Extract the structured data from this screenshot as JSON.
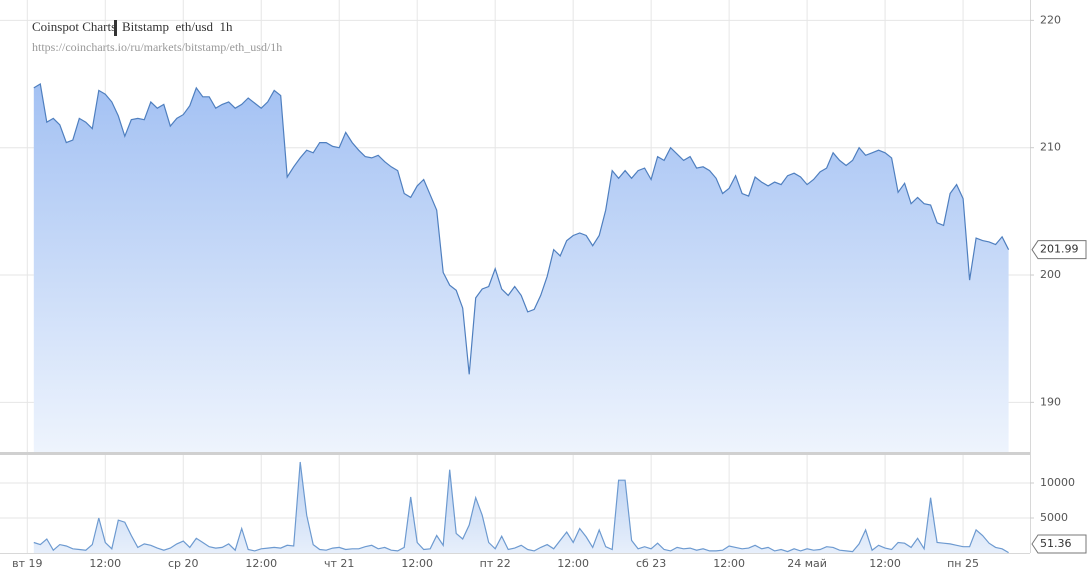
{
  "chart_data": [
    {
      "type": "area",
      "title": "Coinspot Charts",
      "subtitle": "Bitstamp  eth/usd  1h",
      "source": "https://coincharts.io/ru/markets/bitstamp/eth_usd/1h",
      "color": "#4f7fbf",
      "x": [
        1,
        2,
        3,
        4,
        5,
        6,
        7,
        8,
        9,
        10,
        11,
        12,
        13,
        14,
        15,
        16,
        17,
        18,
        19,
        20,
        21,
        22,
        23,
        24,
        25,
        26,
        27,
        28,
        29,
        30,
        31,
        32,
        33,
        34,
        35,
        36,
        37,
        38,
        39,
        40,
        41,
        42,
        43,
        44,
        45,
        46,
        47,
        48,
        49,
        50,
        51,
        52,
        53,
        54,
        55,
        56,
        57,
        58,
        59,
        60,
        61,
        62,
        63,
        64,
        65,
        66,
        67,
        68,
        69,
        70,
        71,
        72,
        73,
        74,
        75,
        76,
        77,
        78,
        79,
        80,
        81,
        82,
        83,
        84,
        85,
        86,
        87,
        88,
        89,
        90,
        91,
        92,
        93,
        94,
        95,
        96,
        97,
        98,
        99,
        100,
        101,
        102,
        103,
        104,
        105,
        106,
        107,
        108,
        109,
        110,
        111,
        112,
        113,
        114,
        115,
        116,
        117,
        118,
        119,
        120,
        121,
        122,
        123,
        124,
        125,
        126,
        127,
        128,
        129,
        130,
        131,
        132,
        133,
        134,
        135,
        136,
        137,
        138,
        139,
        140,
        141,
        142,
        143,
        144,
        145,
        146,
        147,
        148,
        149,
        150,
        151
      ],
      "values": [
        214.7,
        215.0,
        212.0,
        212.3,
        211.8,
        210.4,
        210.6,
        212.3,
        212.0,
        211.5,
        214.5,
        214.2,
        213.6,
        212.5,
        210.9,
        212.2,
        212.3,
        212.2,
        213.6,
        213.1,
        213.4,
        211.7,
        212.3,
        212.6,
        213.3,
        214.7,
        214.0,
        214.0,
        213.1,
        213.4,
        213.6,
        213.1,
        213.4,
        213.9,
        213.5,
        213.1,
        213.6,
        214.5,
        214.1,
        207.7,
        208.5,
        209.2,
        209.8,
        209.6,
        210.4,
        210.4,
        210.1,
        210.0,
        211.2,
        210.4,
        209.8,
        209.3,
        209.2,
        209.4,
        208.9,
        208.5,
        208.2,
        206.4,
        206.1,
        207.0,
        207.5,
        206.3,
        205.1,
        200.2,
        199.2,
        198.8,
        197.4,
        192.2,
        198.2,
        198.9,
        199.1,
        200.5,
        198.9,
        198.4,
        199.1,
        198.4,
        197.1,
        197.3,
        198.4,
        199.9,
        202.0,
        201.5,
        202.7,
        203.1,
        203.3,
        203.1,
        202.3,
        203.1,
        205.1,
        208.2,
        207.6,
        208.2,
        207.6,
        208.2,
        208.4,
        207.5,
        209.3,
        209.0,
        210.0,
        209.5,
        209.0,
        209.3,
        208.4,
        208.5,
        208.2,
        207.6,
        206.4,
        206.8,
        207.8,
        206.4,
        206.2,
        207.7,
        207.3,
        207.0,
        207.3,
        207.1,
        207.8,
        208.0,
        207.7,
        207.1,
        207.5,
        208.1,
        208.4,
        209.6,
        209.0,
        208.6,
        209.0,
        210.0,
        209.4,
        209.6,
        209.8,
        209.6,
        209.2,
        206.5,
        207.2,
        205.6,
        206.1,
        205.6,
        205.5,
        204.1,
        203.9,
        206.4,
        207.1,
        206.0,
        199.6,
        202.9,
        202.7,
        202.6,
        202.4,
        203.0,
        201.99
      ],
      "xlim": [
        -4.2,
        154.3
      ],
      "ylim": [
        186.1,
        221.6
      ],
      "yticks": [
        190,
        200,
        210,
        220
      ],
      "xticks": [
        {
          "value": 0,
          "label": "вт 19"
        },
        {
          "value": 12,
          "label": "12:00"
        },
        {
          "value": 24,
          "label": "ср 20"
        },
        {
          "value": 36,
          "label": "12:00"
        },
        {
          "value": 48,
          "label": "чт 21"
        },
        {
          "value": 60,
          "label": "12:00"
        },
        {
          "value": 72,
          "label": "пт 22"
        },
        {
          "value": 84,
          "label": "12:00"
        },
        {
          "value": 96,
          "label": "сб 23"
        },
        {
          "value": 108,
          "label": "12:00"
        },
        {
          "value": 120,
          "label": "24 май"
        },
        {
          "value": 132,
          "label": "12:00"
        },
        {
          "value": 144,
          "label": "пн 25"
        }
      ],
      "grid": true
    },
    {
      "type": "area",
      "color": "#6d9ad0",
      "x": [
        1,
        2,
        3,
        4,
        5,
        6,
        7,
        8,
        9,
        10,
        11,
        12,
        13,
        14,
        15,
        16,
        17,
        18,
        19,
        20,
        21,
        22,
        23,
        24,
        25,
        26,
        27,
        28,
        29,
        30,
        31,
        32,
        33,
        34,
        35,
        36,
        37,
        38,
        39,
        40,
        41,
        42,
        43,
        44,
        45,
        46,
        47,
        48,
        49,
        50,
        51,
        52,
        53,
        54,
        55,
        56,
        57,
        58,
        59,
        60,
        61,
        62,
        63,
        64,
        65,
        66,
        67,
        68,
        69,
        70,
        71,
        72,
        73,
        74,
        75,
        76,
        77,
        78,
        79,
        80,
        81,
        82,
        83,
        84,
        85,
        86,
        87,
        88,
        89,
        90,
        91,
        92,
        93,
        94,
        95,
        96,
        97,
        98,
        99,
        100,
        101,
        102,
        103,
        104,
        105,
        106,
        107,
        108,
        109,
        110,
        111,
        112,
        113,
        114,
        115,
        116,
        117,
        118,
        119,
        120,
        121,
        122,
        123,
        124,
        125,
        126,
        127,
        128,
        129,
        130,
        131,
        132,
        133,
        134,
        135,
        136,
        137,
        138,
        139,
        140,
        141,
        142,
        143,
        144,
        145,
        146,
        147,
        148,
        149,
        150,
        151
      ],
      "values": [
        1500,
        1200,
        2000,
        400,
        1200,
        1000,
        600,
        500,
        400,
        1200,
        5000,
        1500,
        600,
        4700,
        4400,
        2500,
        800,
        1300,
        1100,
        700,
        400,
        700,
        1300,
        1700,
        800,
        2100,
        1500,
        900,
        700,
        800,
        1300,
        400,
        3500,
        500,
        300,
        600,
        700,
        800,
        700,
        1100,
        1000,
        13000,
        5400,
        1200,
        500,
        400,
        700,
        800,
        500,
        600,
        600,
        900,
        1100,
        600,
        800,
        400,
        300,
        800,
        8000,
        1500,
        500,
        600,
        2500,
        1100,
        11900,
        2800,
        2000,
        4000,
        7900,
        5400,
        1500,
        600,
        2400,
        500,
        700,
        1100,
        500,
        300,
        800,
        1200,
        600,
        1800,
        3000,
        1500,
        3500,
        2300,
        800,
        3300,
        900,
        500,
        10400,
        10400,
        1800,
        600,
        900,
        600,
        1400,
        500,
        300,
        800,
        600,
        700,
        400,
        600,
        300,
        300,
        400,
        1000,
        800,
        600,
        700,
        1100,
        600,
        800,
        300,
        500,
        200,
        600,
        300,
        600,
        400,
        500,
        900,
        800,
        400,
        300,
        200,
        1300,
        3300,
        400,
        1100,
        700,
        500,
        1500,
        1400,
        800,
        2100,
        600,
        7900,
        1500,
        1400,
        1300,
        1100,
        900,
        900,
        3300,
        2500,
        1400,
        800,
        600,
        51.36
      ],
      "xlim": [
        -4.2,
        154.3
      ],
      "ylim": [
        0,
        14000
      ],
      "yticks": [
        5000,
        10000
      ],
      "xticks": [
        {
          "value": 0,
          "label": "вт 19"
        },
        {
          "value": 12,
          "label": "12:00"
        },
        {
          "value": 24,
          "label": "ср 20"
        },
        {
          "value": 36,
          "label": "12:00"
        },
        {
          "value": 48,
          "label": "чт 21"
        },
        {
          "value": 60,
          "label": "12:00"
        },
        {
          "value": 72,
          "label": "пт 22"
        },
        {
          "value": 84,
          "label": "12:00"
        },
        {
          "value": 96,
          "label": "сб 23"
        },
        {
          "value": 108,
          "label": "12:00"
        },
        {
          "value": 120,
          "label": "24 май"
        },
        {
          "value": 132,
          "label": "12:00"
        },
        {
          "value": 144,
          "label": "пн 25"
        }
      ],
      "grid": true
    }
  ]
}
